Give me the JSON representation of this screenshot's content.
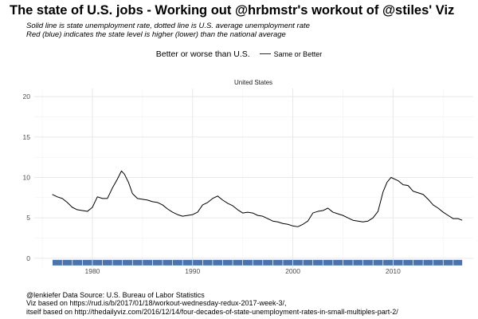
{
  "title": "The state of U.S. jobs - Working out @hrbmstr's workout of @stiles' Viz",
  "subtitle_line1": "Solid line is state unemployment rate, dotted line is U.S. average unemployment rate",
  "subtitle_line2": "Red (blue) indicates the state level is higher (lower) than the national average",
  "legend": {
    "title": "Better or worse than U.S.",
    "entries": [
      {
        "label": "Same or Better",
        "color": "#2b2b2b"
      }
    ]
  },
  "caption": {
    "line1": "@lenkiefer Data Source: U.S. Bureau of Labor Statistics",
    "line2": "Viz based on https://rud.is/b/2017/01/18/workout-wednesday-redux-2017-week-3/,",
    "line3": "itself based on http://thedailyviz.com/2016/12/14/four-decades-of-state-unemployment-rates-in-small-multiples-part-2/"
  },
  "chart_data": {
    "type": "line",
    "panel_label": "United States",
    "xlabel": "",
    "ylabel": "",
    "xlim": [
      1974.2,
      2018.0
    ],
    "ylim": [
      -1.2,
      21.0
    ],
    "x_ticks": [
      1980,
      1990,
      2000,
      2010
    ],
    "y_ticks": [
      0,
      5,
      10,
      15,
      20
    ],
    "grid": true,
    "series": [
      {
        "line_color": "#000000",
        "points": [
          [
            1976.0,
            7.9
          ],
          [
            1976.5,
            7.6
          ],
          [
            1977.0,
            7.4
          ],
          [
            1977.5,
            6.9
          ],
          [
            1978.0,
            6.3
          ],
          [
            1978.5,
            6.0
          ],
          [
            1979.0,
            5.9
          ],
          [
            1979.5,
            5.8
          ],
          [
            1980.0,
            6.3
          ],
          [
            1980.5,
            7.6
          ],
          [
            1981.0,
            7.4
          ],
          [
            1981.5,
            7.4
          ],
          [
            1982.0,
            8.7
          ],
          [
            1982.5,
            9.8
          ],
          [
            1982.9,
            10.8
          ],
          [
            1983.2,
            10.4
          ],
          [
            1983.6,
            9.4
          ],
          [
            1984.0,
            8.0
          ],
          [
            1984.5,
            7.4
          ],
          [
            1985.0,
            7.3
          ],
          [
            1985.5,
            7.2
          ],
          [
            1986.0,
            7.0
          ],
          [
            1986.5,
            6.9
          ],
          [
            1987.0,
            6.6
          ],
          [
            1987.5,
            6.1
          ],
          [
            1988.0,
            5.7
          ],
          [
            1988.5,
            5.4
          ],
          [
            1989.0,
            5.2
          ],
          [
            1989.5,
            5.3
          ],
          [
            1990.0,
            5.4
          ],
          [
            1990.5,
            5.7
          ],
          [
            1991.0,
            6.6
          ],
          [
            1991.5,
            6.9
          ],
          [
            1992.0,
            7.4
          ],
          [
            1992.5,
            7.7
          ],
          [
            1993.0,
            7.2
          ],
          [
            1993.5,
            6.8
          ],
          [
            1994.0,
            6.5
          ],
          [
            1994.5,
            6.0
          ],
          [
            1995.0,
            5.6
          ],
          [
            1995.5,
            5.7
          ],
          [
            1996.0,
            5.6
          ],
          [
            1996.5,
            5.3
          ],
          [
            1997.0,
            5.2
          ],
          [
            1997.5,
            4.9
          ],
          [
            1998.0,
            4.6
          ],
          [
            1998.5,
            4.5
          ],
          [
            1999.0,
            4.3
          ],
          [
            1999.5,
            4.2
          ],
          [
            2000.0,
            4.0
          ],
          [
            2000.5,
            3.9
          ],
          [
            2001.0,
            4.2
          ],
          [
            2001.5,
            4.6
          ],
          [
            2002.0,
            5.6
          ],
          [
            2002.5,
            5.8
          ],
          [
            2003.0,
            5.9
          ],
          [
            2003.5,
            6.2
          ],
          [
            2004.0,
            5.7
          ],
          [
            2004.5,
            5.5
          ],
          [
            2005.0,
            5.3
          ],
          [
            2005.5,
            5.0
          ],
          [
            2006.0,
            4.7
          ],
          [
            2006.5,
            4.6
          ],
          [
            2007.0,
            4.5
          ],
          [
            2007.5,
            4.6
          ],
          [
            2008.0,
            5.0
          ],
          [
            2008.5,
            5.8
          ],
          [
            2009.0,
            8.2
          ],
          [
            2009.4,
            9.4
          ],
          [
            2009.8,
            10.0
          ],
          [
            2010.5,
            9.6
          ],
          [
            2011.0,
            9.1
          ],
          [
            2011.5,
            9.0
          ],
          [
            2012.0,
            8.3
          ],
          [
            2012.5,
            8.1
          ],
          [
            2013.0,
            7.9
          ],
          [
            2013.5,
            7.3
          ],
          [
            2014.0,
            6.6
          ],
          [
            2014.5,
            6.2
          ],
          [
            2015.0,
            5.7
          ],
          [
            2015.5,
            5.3
          ],
          [
            2016.0,
            4.9
          ],
          [
            2016.5,
            4.9
          ],
          [
            2016.9,
            4.7
          ]
        ]
      }
    ],
    "status_strip": {
      "y": 0,
      "x_start": 1976.0,
      "x_end": 2016.9,
      "color": "#4b73ae",
      "category": "Same or Better"
    }
  }
}
